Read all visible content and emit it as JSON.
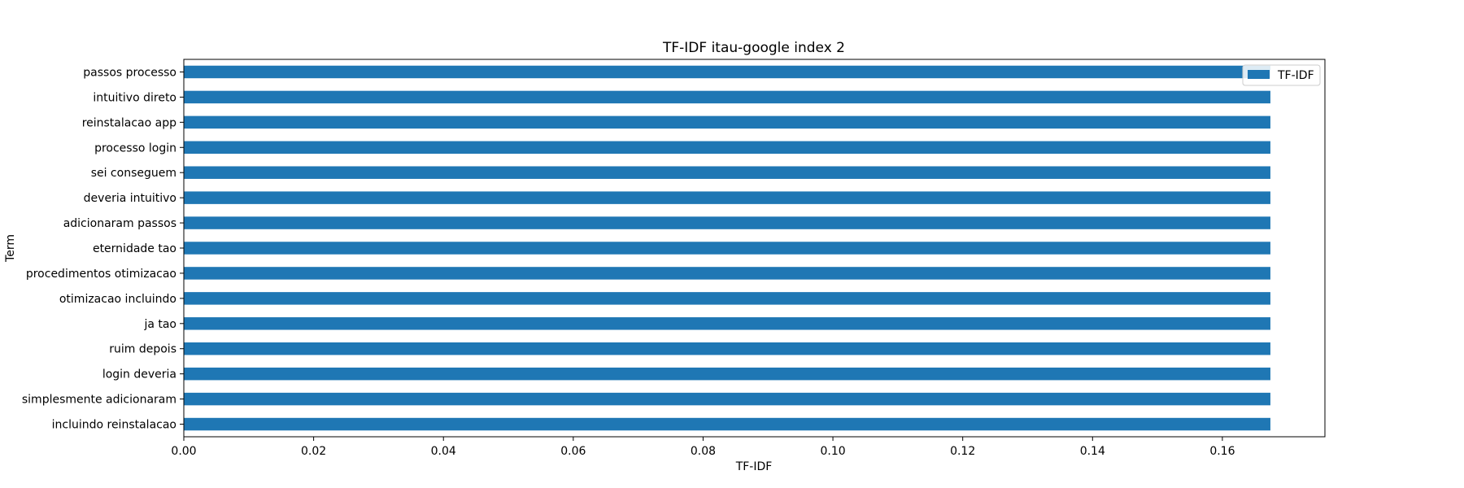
{
  "chart_data": {
    "type": "bar",
    "orientation": "horizontal",
    "title": "TF-IDF itau-google index 2",
    "xlabel": "TF-IDF",
    "ylabel": "Term",
    "categories": [
      "passos processo",
      "intuitivo direto",
      "reinstalacao app",
      "processo login",
      "sei conseguem",
      "deveria intuitivo",
      "adicionaram passos",
      "eternidade tao",
      "procedimentos otimizacao",
      "otimizacao incluindo",
      "ja tao",
      "ruim depois",
      "login deveria",
      "simplesmente adicionaram",
      "incluindo reinstalacao"
    ],
    "series": [
      {
        "name": "TF-IDF",
        "color": "#1f77b4",
        "values": [
          0.1674,
          0.1674,
          0.1674,
          0.1674,
          0.1674,
          0.1674,
          0.1674,
          0.1674,
          0.1674,
          0.1674,
          0.1674,
          0.1674,
          0.1674,
          0.1674,
          0.1674
        ]
      }
    ],
    "xlim": [
      0,
      0.1758
    ],
    "xticks": [
      0.0,
      0.02,
      0.04,
      0.06,
      0.08,
      0.1,
      0.12,
      0.14,
      0.16
    ],
    "xtick_labels": [
      "0.00",
      "0.02",
      "0.04",
      "0.06",
      "0.08",
      "0.10",
      "0.12",
      "0.14",
      "0.16"
    ],
    "grid": false,
    "legend_position": "top-right"
  }
}
